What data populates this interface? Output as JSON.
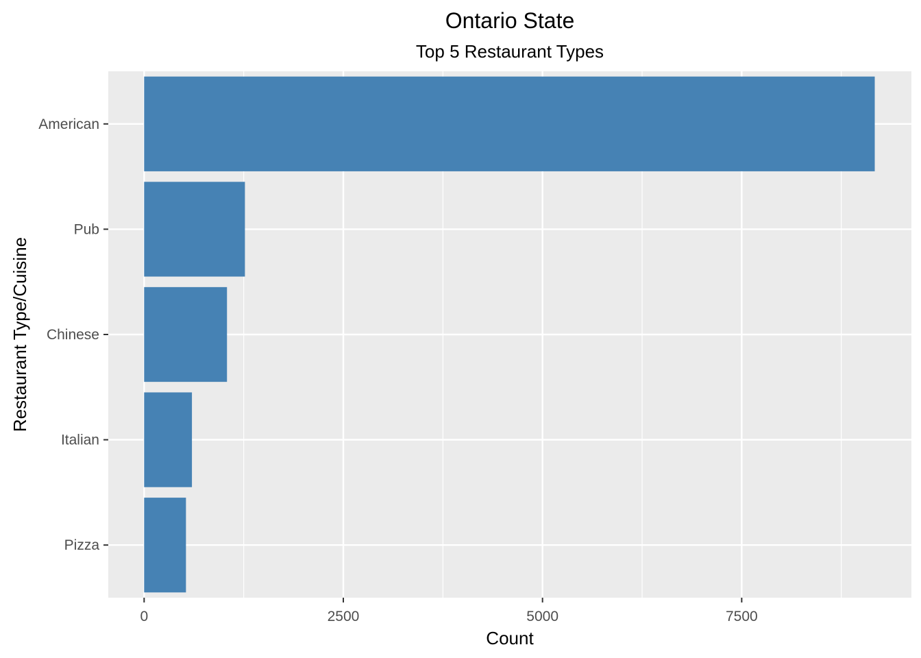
{
  "chart_data": {
    "type": "bar",
    "orientation": "horizontal",
    "title": "Ontario State",
    "subtitle": "Top 5 Restaurant Types",
    "xlabel": "Count",
    "ylabel": "Restaurant Type/Cuisine",
    "categories": [
      "American",
      "Pub",
      "Chinese",
      "Italian",
      "Pizza"
    ],
    "values": [
      9170,
      1265,
      1040,
      600,
      525
    ],
    "xlim": [
      -450,
      9630
    ],
    "xticks": [
      0,
      2500,
      5000,
      7500
    ],
    "xtick_labels": [
      "0",
      "2500",
      "5000",
      "7500"
    ],
    "grid": true,
    "legend": "none",
    "colors": {
      "bar": "#4682B4",
      "panel_background": "#EBEBEB",
      "grid": "#FFFFFF",
      "tick_text": "#4D4D4D",
      "tick_mark": "#333333"
    }
  }
}
